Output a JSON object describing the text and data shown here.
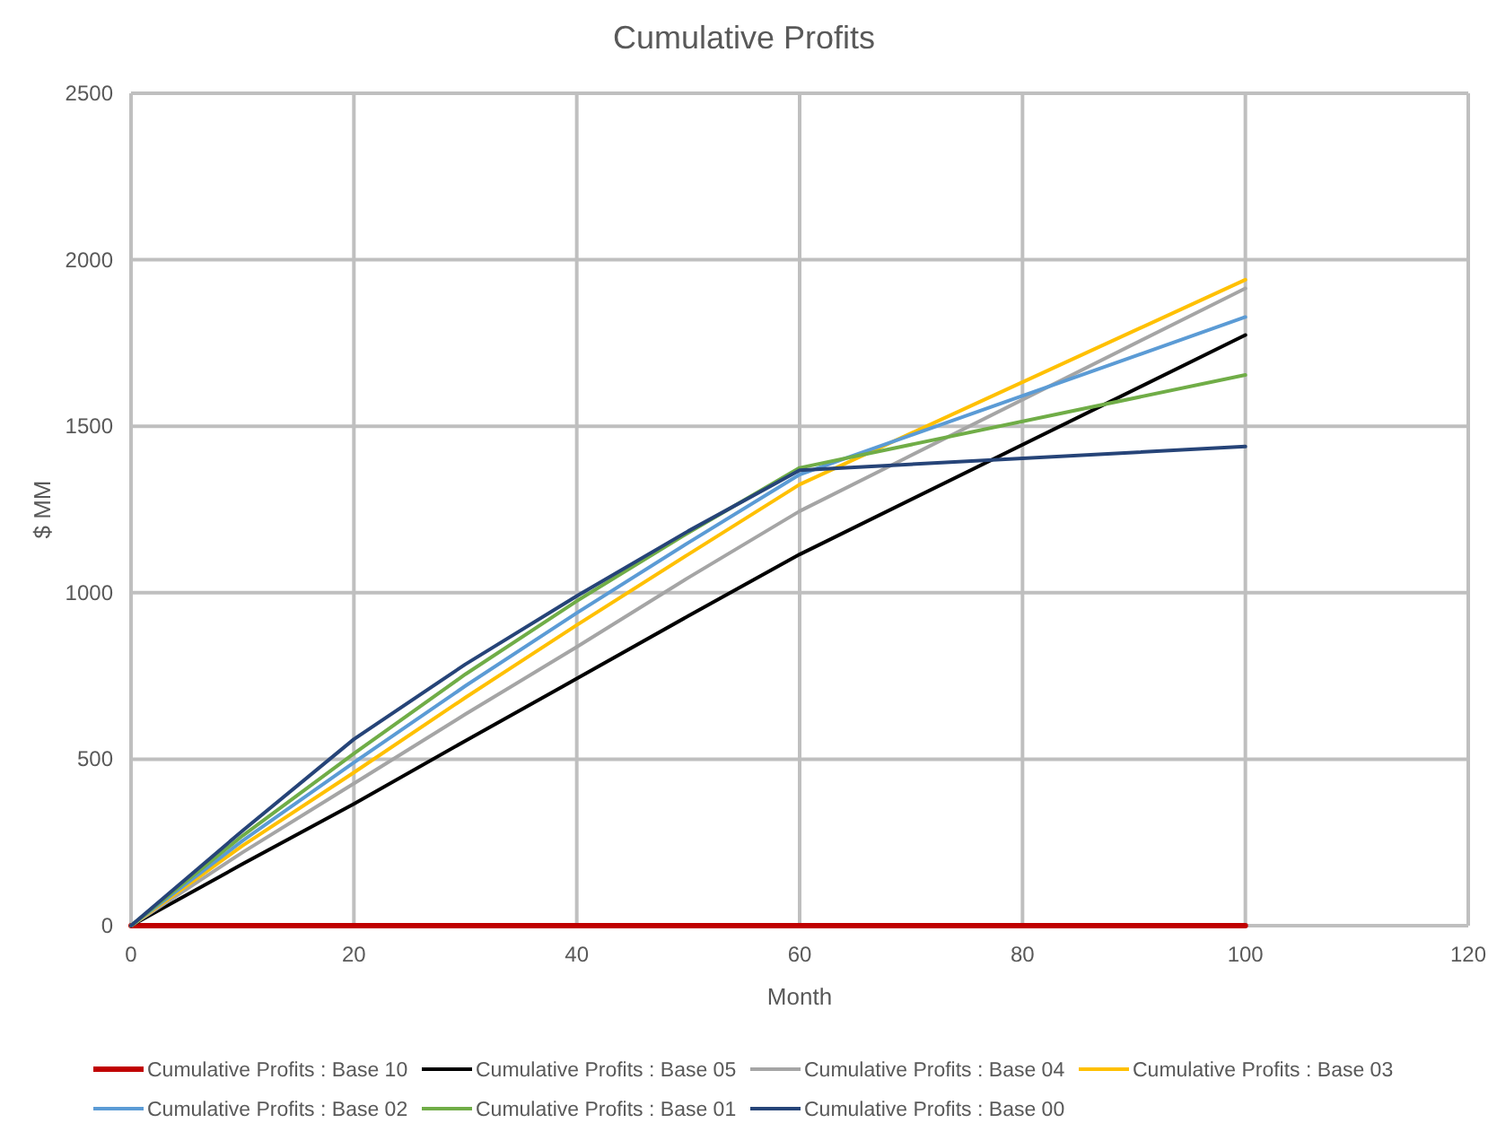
{
  "chart_data": {
    "type": "line",
    "title": "Cumulative Profits",
    "xlabel": "Month",
    "ylabel": "$ MM",
    "x": [
      0,
      10,
      20,
      30,
      40,
      50,
      60,
      100
    ],
    "xlim": [
      0,
      120
    ],
    "xticks": [
      0,
      20,
      40,
      60,
      80,
      100,
      120
    ],
    "ylim": [
      0,
      2500
    ],
    "yticks": [
      0,
      500,
      1000,
      1500,
      2000,
      2500
    ],
    "grid": true,
    "legend": "bottom",
    "marker": "none",
    "line_style": "solid",
    "series": [
      {
        "name": "Cumulative Profits : Base 10",
        "color": "#c00000",
        "values": [
          0,
          0,
          0,
          0,
          0,
          0,
          0,
          0
        ]
      },
      {
        "name": "Cumulative Profits : Base 05",
        "color": "#000000",
        "values": [
          0,
          185,
          366,
          555,
          742,
          930,
          1115,
          1774
        ]
      },
      {
        "name": "Cumulative Profits : Base 04",
        "color": "#a5a5a5",
        "values": [
          0,
          220,
          427,
          635,
          837,
          1045,
          1245,
          1914
        ]
      },
      {
        "name": "Cumulative Profits : Base 03",
        "color": "#ffc000",
        "values": [
          0,
          240,
          460,
          685,
          903,
          1115,
          1325,
          1940
        ]
      },
      {
        "name": "Cumulative Profits : Base 02",
        "color": "#5b9bd5",
        "values": [
          0,
          255,
          490,
          720,
          939,
          1150,
          1355,
          1828
        ]
      },
      {
        "name": "Cumulative Profits : Base 01",
        "color": "#70ad47",
        "values": [
          0,
          270,
          517,
          755,
          975,
          1180,
          1375,
          1654
        ]
      },
      {
        "name": "Cumulative Profits : Base 00",
        "color": "#264478",
        "values": [
          0,
          285,
          560,
          785,
          990,
          1185,
          1368,
          1439
        ]
      }
    ]
  }
}
